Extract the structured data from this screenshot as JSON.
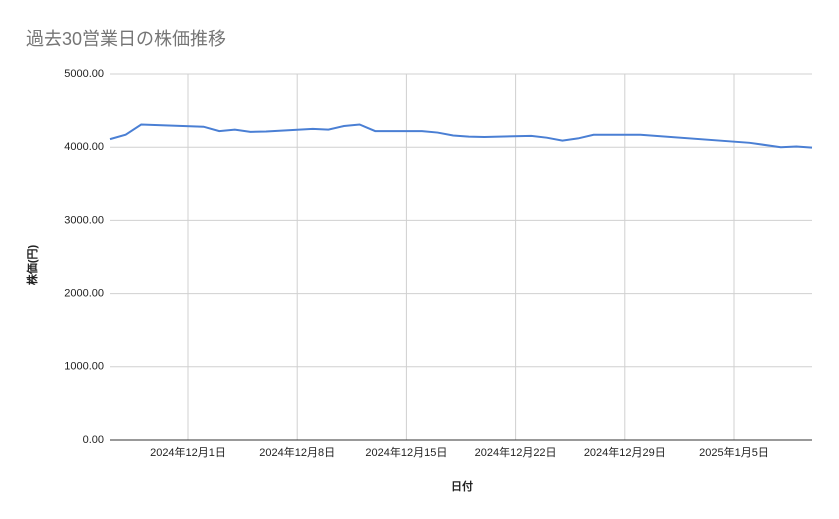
{
  "chart_data": {
    "type": "line",
    "title": "過去30営業日の株価推移",
    "x_label": "日付",
    "y_label": "株価(円)",
    "x": [
      "2024-11-26",
      "2024-11-27",
      "2024-11-28",
      "2024-12-02",
      "2024-12-03",
      "2024-12-04",
      "2024-12-05",
      "2024-12-06",
      "2024-12-09",
      "2024-12-10",
      "2024-12-11",
      "2024-12-12",
      "2024-12-13",
      "2024-12-16",
      "2024-12-17",
      "2024-12-18",
      "2024-12-19",
      "2024-12-20",
      "2024-12-23",
      "2024-12-24",
      "2024-12-25",
      "2024-12-26",
      "2024-12-27",
      "2024-12-30",
      "2025-01-06",
      "2025-01-08",
      "2025-01-09",
      "2025-01-10"
    ],
    "series": [
      {
        "name": "株価",
        "color": "#4a7fd4",
        "values": [
          4110,
          4170,
          4310,
          4280,
          4220,
          4240,
          4210,
          4215,
          4250,
          4240,
          4290,
          4310,
          4220,
          4220,
          4200,
          4160,
          4145,
          4140,
          4155,
          4130,
          4090,
          4120,
          4170,
          4170,
          4060,
          4000,
          4010,
          3995
        ]
      }
    ],
    "xlim": [
      "2024-11-26",
      "2025-01-10"
    ],
    "xticks": [
      {
        "value": "2024-12-01",
        "label": "2024年12月1日"
      },
      {
        "value": "2024-12-08",
        "label": "2024年12月8日"
      },
      {
        "value": "2024-12-15",
        "label": "2024年12月15日"
      },
      {
        "value": "2024-12-22",
        "label": "2024年12月22日"
      },
      {
        "value": "2024-12-29",
        "label": "2024年12月29日"
      },
      {
        "value": "2025-01-05",
        "label": "2025年1月5日"
      }
    ],
    "ylim": [
      0,
      5000
    ],
    "yticks": [
      {
        "value": 0,
        "label": "0.00"
      },
      {
        "value": 1000,
        "label": "1000.00"
      },
      {
        "value": 2000,
        "label": "2000.00"
      },
      {
        "value": 3000,
        "label": "3000.00"
      },
      {
        "value": 4000,
        "label": "4000.00"
      },
      {
        "value": 5000,
        "label": "5000.00"
      }
    ],
    "grid": true
  }
}
